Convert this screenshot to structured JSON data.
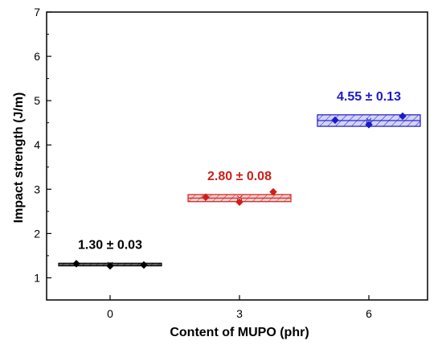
{
  "chart_data": {
    "type": "scatter",
    "title": "",
    "xlabel": "Content of MUPO (phr)",
    "ylabel": "Impact strength (J/m)",
    "x_categories": [
      "0",
      "3",
      "6"
    ],
    "ylim": [
      0.5,
      7
    ],
    "y_ticks": [
      "1",
      "2",
      "3",
      "4",
      "5",
      "6",
      "7"
    ],
    "grid": false,
    "legend": "none",
    "groups": [
      {
        "category": "0",
        "mean": 1.3,
        "sd": 0.03,
        "points": [
          1.32,
          1.27,
          1.29
        ],
        "annotation": "1.30 ± 0.03",
        "color": "#000000",
        "fill": "#d9d9d9"
      },
      {
        "category": "3",
        "mean": 2.8,
        "sd": 0.08,
        "points": [
          2.82,
          2.71,
          2.94
        ],
        "annotation": "2.80 ± 0.08",
        "color": "#cc1f1a",
        "fill": "#f6cfcf"
      },
      {
        "category": "6",
        "mean": 4.55,
        "sd": 0.13,
        "points": [
          4.56,
          4.46,
          4.65
        ],
        "annotation": "4.55 ± 0.13",
        "color": "#1a1acc",
        "fill": "#d3d3f5"
      }
    ]
  }
}
